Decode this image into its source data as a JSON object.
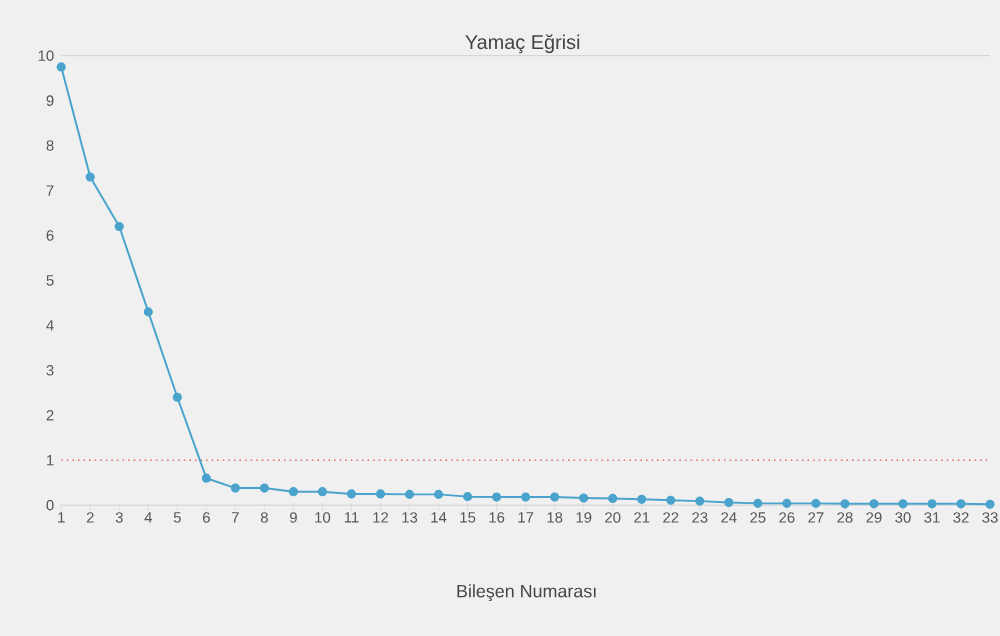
{
  "chart_data": {
    "type": "line",
    "title": "Yamaç Eğrisi",
    "xlabel": "Bileşen Numarası",
    "categories": [
      "1",
      "2",
      "3",
      "4",
      "5",
      "6",
      "7",
      "8",
      "9",
      "10",
      "11",
      "12",
      "13",
      "14",
      "15",
      "16",
      "17",
      "18",
      "19",
      "20",
      "21",
      "22",
      "23",
      "24",
      "25",
      "26",
      "27",
      "28",
      "29",
      "30",
      "31",
      "32",
      "33"
    ],
    "series": [
      {
        "color": "#4aa3cc",
        "values": [
          9.75,
          7.3,
          6.2,
          4.3,
          2.4,
          0.6,
          0.38,
          0.38,
          0.3,
          0.3,
          0.25,
          0.25,
          0.24,
          0.24,
          0.19,
          0.18,
          0.18,
          0.18,
          0.16,
          0.15,
          0.13,
          0.11,
          0.09,
          0.06,
          0.04,
          0.04,
          0.04,
          0.03,
          0.03,
          0.03,
          0.03,
          0.03,
          0.02
        ]
      }
    ],
    "ylim": [
      0,
      10
    ],
    "yticks": [
      0,
      1,
      2,
      3,
      4,
      5,
      6,
      7,
      8,
      9,
      10
    ],
    "ref_lines": [
      {
        "axis": "y",
        "value": 1,
        "color": "#e07070",
        "line_style": "dotted"
      }
    ],
    "marker": "circle",
    "line_style": "solid"
  }
}
